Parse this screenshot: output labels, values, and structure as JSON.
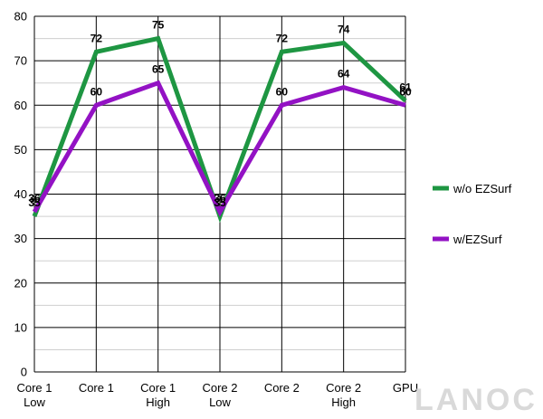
{
  "chart_data": {
    "type": "line",
    "title": "",
    "xlabel": "",
    "ylabel": "",
    "categories": [
      [
        "Core 1",
        "Low"
      ],
      [
        "Core 1"
      ],
      [
        "Core 1",
        "High"
      ],
      [
        "Core 2",
        "Low"
      ],
      [
        "Core 2"
      ],
      [
        "Core 2",
        "High"
      ],
      [
        "GPU"
      ]
    ],
    "series": [
      {
        "name": "w/o EZSurf",
        "color": "#1e9642",
        "values": [
          35,
          72,
          75,
          35,
          72,
          74,
          61
        ]
      },
      {
        "name": "w/EZSurf",
        "color": "#9312c4",
        "values": [
          36,
          60,
          65,
          36,
          60,
          64,
          60
        ]
      }
    ],
    "ylim": [
      0,
      80
    ],
    "y_major_ticks": [
      0,
      10,
      20,
      30,
      40,
      50,
      60,
      70,
      80
    ],
    "y_minor_step": 5,
    "grid": true,
    "data_labels": true,
    "legend_position": "right"
  },
  "watermark": {
    "text": "LANOC"
  }
}
